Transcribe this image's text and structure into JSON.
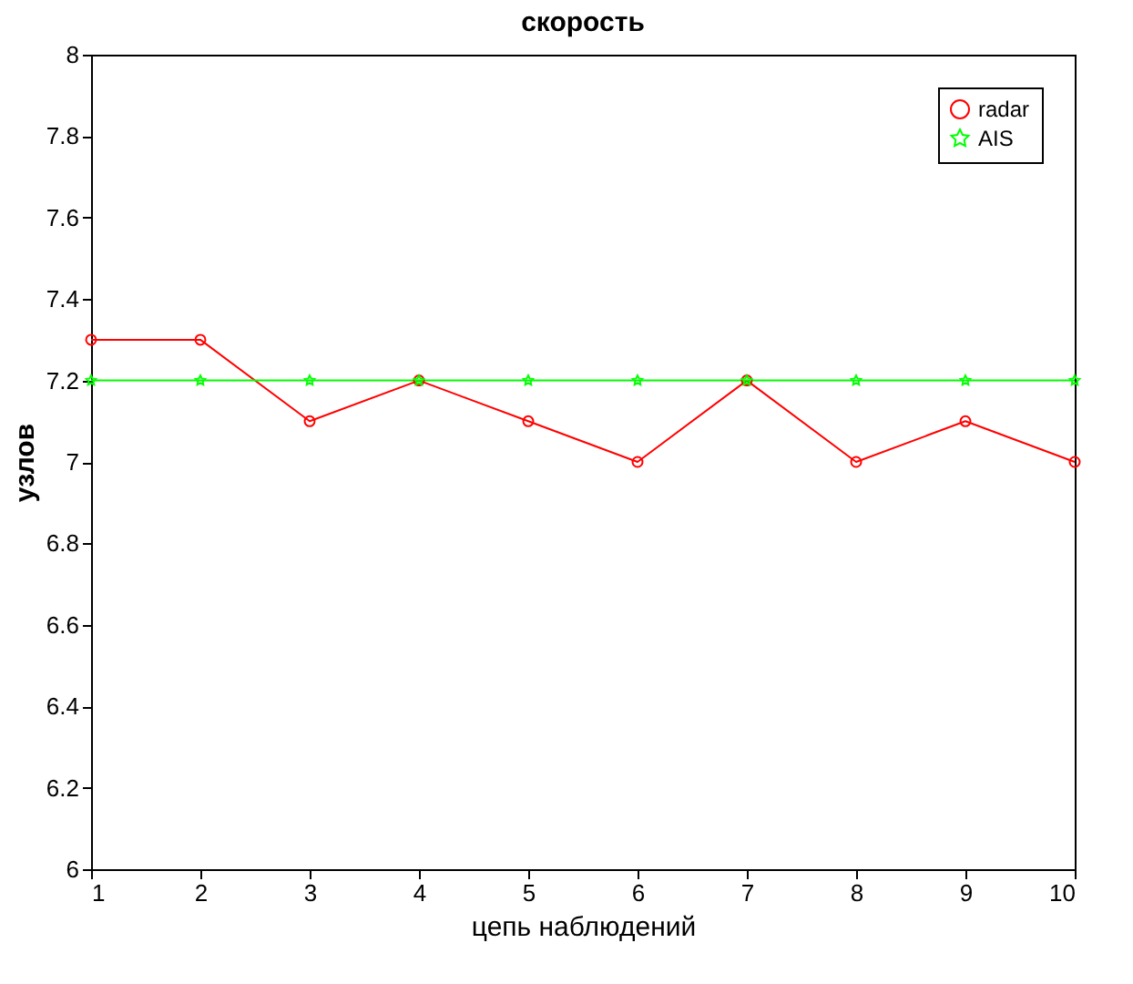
{
  "chart_data": {
    "type": "line",
    "title": "скорость",
    "xlabel": "цепь наблюдений",
    "ylabel": "узлов",
    "x": [
      1,
      2,
      3,
      4,
      5,
      6,
      7,
      8,
      9,
      10
    ],
    "series": [
      {
        "name": "radar",
        "color": "#ff0000",
        "marker": "circle",
        "values": [
          7.3,
          7.3,
          7.1,
          7.2,
          7.1,
          7.0,
          7.2,
          7.0,
          7.1,
          7.0
        ]
      },
      {
        "name": "AIS",
        "color": "#00ff00",
        "marker": "star",
        "values": [
          7.2,
          7.2,
          7.2,
          7.2,
          7.2,
          7.2,
          7.2,
          7.2,
          7.2,
          7.2
        ]
      }
    ],
    "xlim": [
      1,
      10
    ],
    "xticks": [
      1,
      2,
      3,
      4,
      5,
      6,
      7,
      8,
      9,
      10
    ],
    "ylim": [
      6,
      8
    ],
    "yticks": [
      6,
      6.2,
      6.4,
      6.6,
      6.8,
      7,
      7.2,
      7.4,
      7.6,
      7.8,
      8
    ],
    "grid": false,
    "legend": "top right",
    "line_style": "solid"
  }
}
